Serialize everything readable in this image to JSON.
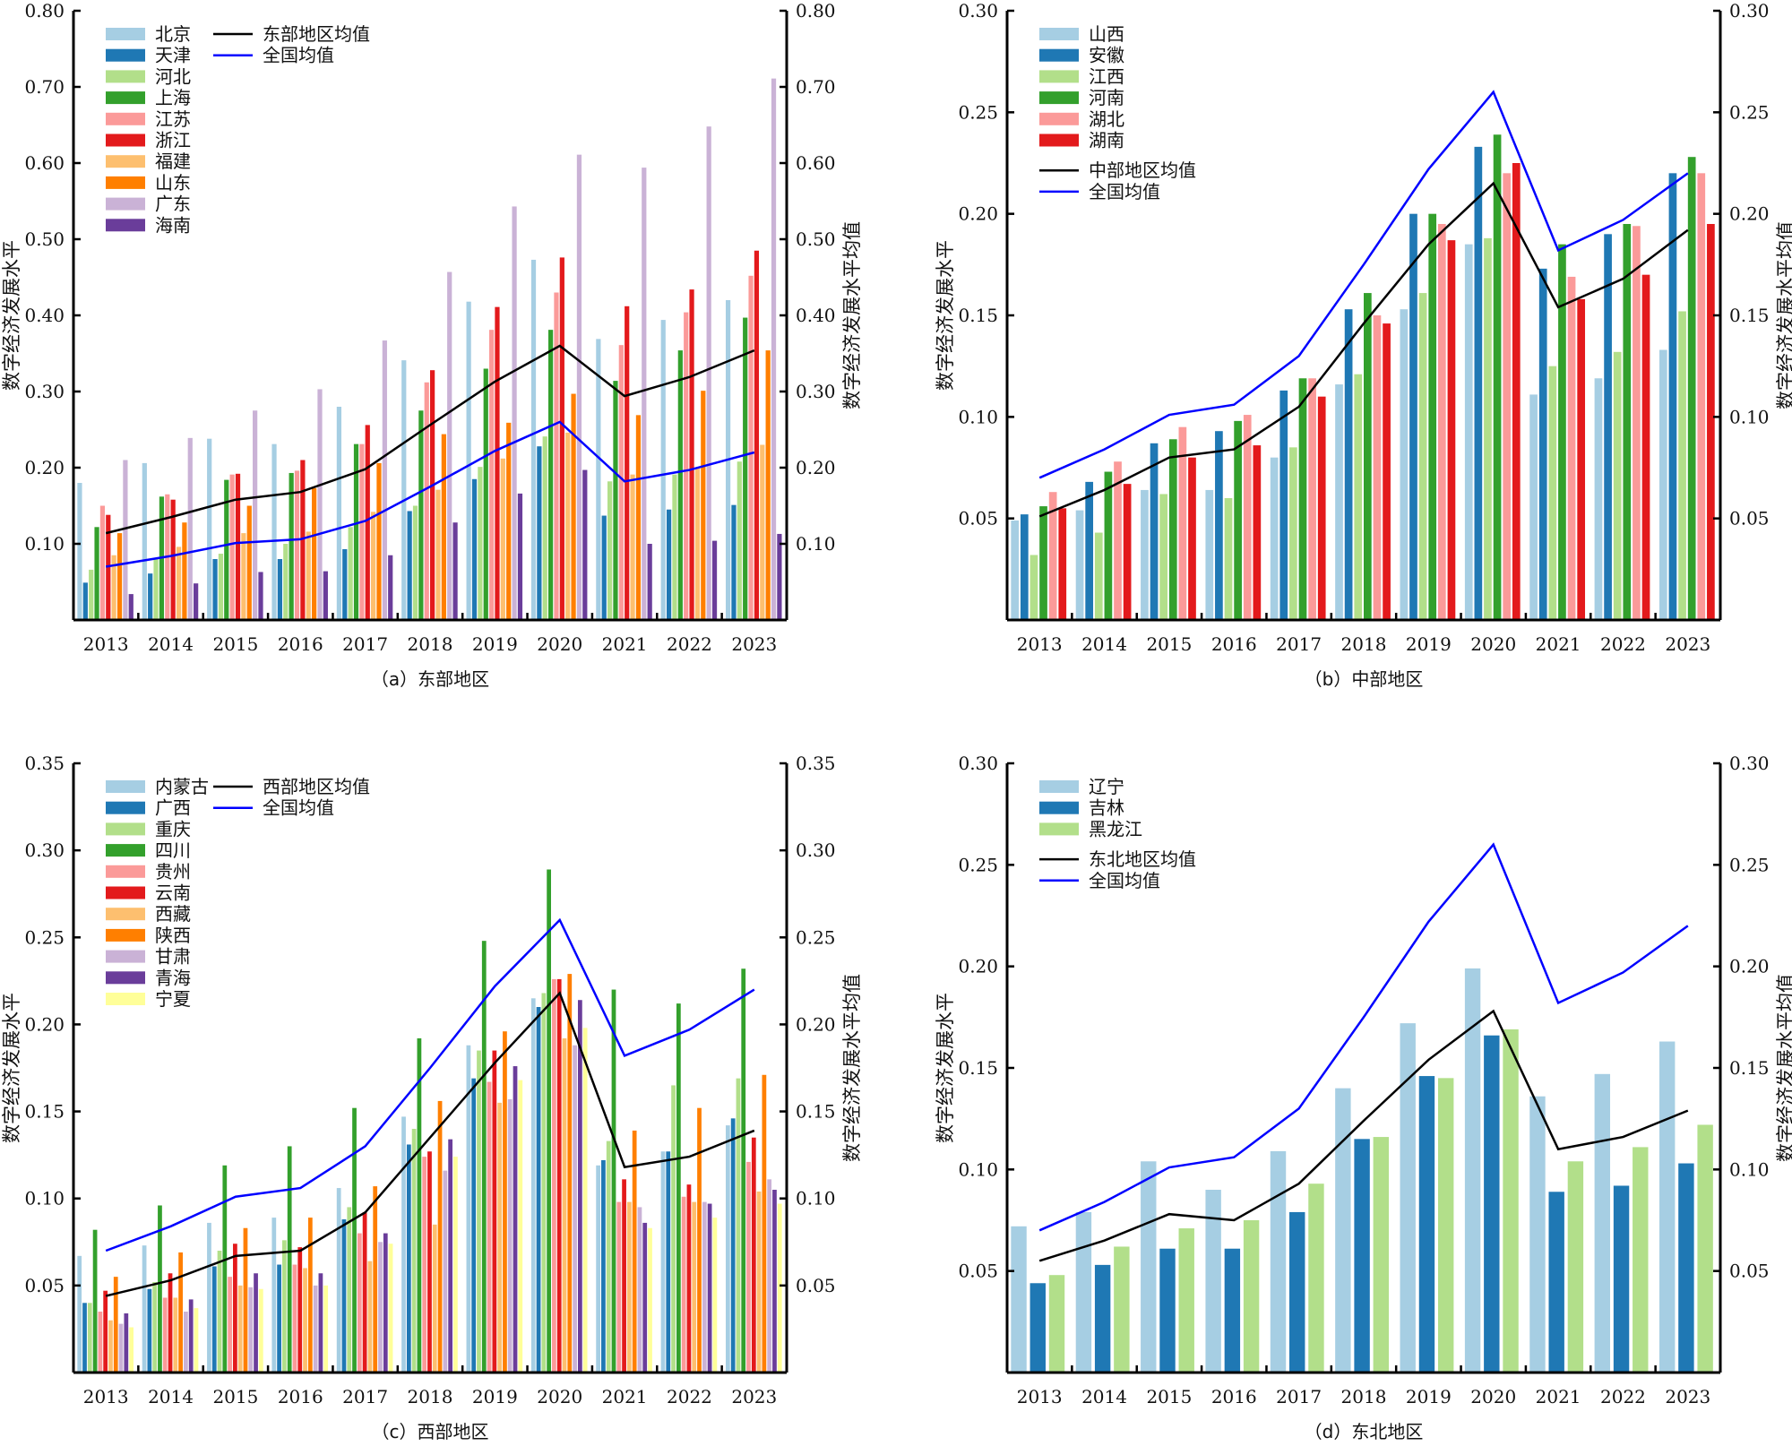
{
  "years": [
    "2013",
    "2014",
    "2015",
    "2016",
    "2017",
    "2018",
    "2019",
    "2020",
    "2021",
    "2022",
    "2023"
  ],
  "national_avg": [
    0.07,
    0.084,
    0.101,
    0.106,
    0.13,
    0.175,
    0.222,
    0.26,
    0.182,
    0.197,
    0.22
  ],
  "chart_data": [
    {
      "type": "bar",
      "id": "east",
      "caption": "（a）东部地区",
      "ylabel": "数字经济发展水平",
      "ylabel_right": "数字经济发展水平均值",
      "ylim": [
        0,
        0.8
      ],
      "yticks": [
        0.1,
        0.2,
        0.3,
        0.4,
        0.5,
        0.6,
        0.7,
        0.8
      ],
      "yticks_right": [
        0.1,
        0.2,
        0.3,
        0.4,
        0.5,
        0.6,
        0.7,
        0.8
      ],
      "tick_decimals": 2,
      "categories": [
        "2013",
        "2014",
        "2015",
        "2016",
        "2017",
        "2018",
        "2019",
        "2020",
        "2021",
        "2022",
        "2023"
      ],
      "legend_layout": "two-column",
      "series": [
        {
          "name": "北京",
          "color": "#a6cee3",
          "values": [
            0.18,
            0.206,
            0.238,
            0.231,
            0.28,
            0.341,
            0.418,
            0.473,
            0.369,
            0.394,
            0.42
          ]
        },
        {
          "name": "天津",
          "color": "#1f78b4",
          "values": [
            0.049,
            0.061,
            0.08,
            0.08,
            0.093,
            0.143,
            0.185,
            0.228,
            0.137,
            0.145,
            0.151
          ]
        },
        {
          "name": "河北",
          "color": "#b2df8a",
          "values": [
            0.066,
            0.08,
            0.087,
            0.1,
            0.122,
            0.15,
            0.201,
            0.241,
            0.182,
            0.191,
            0.208
          ]
        },
        {
          "name": "上海",
          "color": "#33a02c",
          "values": [
            0.122,
            0.162,
            0.184,
            0.193,
            0.231,
            0.275,
            0.33,
            0.381,
            0.314,
            0.354,
            0.397
          ]
        },
        {
          "name": "江苏",
          "color": "#fb9a99",
          "values": [
            0.15,
            0.165,
            0.191,
            0.196,
            0.231,
            0.312,
            0.381,
            0.43,
            0.361,
            0.404,
            0.452
          ]
        },
        {
          "name": "浙江",
          "color": "#e31a1c",
          "values": [
            0.138,
            0.158,
            0.192,
            0.21,
            0.256,
            0.328,
            0.411,
            0.476,
            0.412,
            0.434,
            0.485
          ]
        },
        {
          "name": "福建",
          "color": "#fdbf6f",
          "values": [
            0.085,
            0.096,
            0.114,
            0.116,
            0.142,
            0.171,
            0.212,
            0.246,
            0.191,
            0.2,
            0.23
          ]
        },
        {
          "name": "山东",
          "color": "#ff7f00",
          "values": [
            0.114,
            0.128,
            0.15,
            0.173,
            0.206,
            0.244,
            0.259,
            0.297,
            0.269,
            0.301,
            0.354
          ]
        },
        {
          "name": "广东",
          "color": "#cab2d6",
          "values": [
            0.21,
            0.239,
            0.275,
            0.303,
            0.367,
            0.457,
            0.543,
            0.611,
            0.594,
            0.648,
            0.711
          ]
        },
        {
          "name": "海南",
          "color": "#6a3d9a",
          "values": [
            0.034,
            0.048,
            0.063,
            0.064,
            0.085,
            0.128,
            0.166,
            0.197,
            0.1,
            0.104,
            0.113
          ]
        }
      ],
      "lines": [
        {
          "name": "东部地区均值",
          "color": "#000000",
          "values": [
            0.114,
            0.135,
            0.158,
            0.168,
            0.198,
            0.256,
            0.313,
            0.36,
            0.294,
            0.319,
            0.354
          ]
        },
        {
          "name": "全国均值",
          "color": "#0000ff",
          "values": [
            0.07,
            0.084,
            0.101,
            0.106,
            0.13,
            0.175,
            0.222,
            0.26,
            0.182,
            0.197,
            0.22
          ]
        }
      ]
    },
    {
      "type": "bar",
      "id": "central",
      "caption": "（b）中部地区",
      "ylabel": "数字经济发展水平",
      "ylabel_right": "数字经济发展水平均值",
      "ylim": [
        0,
        0.3
      ],
      "yticks": [
        0.05,
        0.1,
        0.15,
        0.2,
        0.25,
        0.3
      ],
      "yticks_right": [
        0.05,
        0.1,
        0.15,
        0.2,
        0.25,
        0.3
      ],
      "tick_decimals": 2,
      "categories": [
        "2013",
        "2014",
        "2015",
        "2016",
        "2017",
        "2018",
        "2019",
        "2020",
        "2021",
        "2022",
        "2023"
      ],
      "legend_layout": "stacked",
      "series": [
        {
          "name": "山西",
          "color": "#a6cee3",
          "values": [
            0.049,
            0.054,
            0.064,
            0.064,
            0.08,
            0.116,
            0.153,
            0.185,
            0.111,
            0.119,
            0.133
          ]
        },
        {
          "name": "安徽",
          "color": "#1f78b4",
          "values": [
            0.052,
            0.068,
            0.087,
            0.093,
            0.113,
            0.153,
            0.2,
            0.233,
            0.173,
            0.19,
            0.22
          ]
        },
        {
          "name": "江西",
          "color": "#b2df8a",
          "values": [
            0.032,
            0.043,
            0.062,
            0.06,
            0.085,
            0.121,
            0.161,
            0.188,
            0.125,
            0.132,
            0.152
          ]
        },
        {
          "name": "河南",
          "color": "#33a02c",
          "values": [
            0.056,
            0.073,
            0.089,
            0.098,
            0.119,
            0.161,
            0.2,
            0.239,
            0.185,
            0.195,
            0.228
          ]
        },
        {
          "name": "湖北",
          "color": "#fb9a99",
          "values": [
            0.063,
            0.078,
            0.095,
            0.101,
            0.119,
            0.15,
            0.195,
            0.22,
            0.169,
            0.194,
            0.22
          ]
        },
        {
          "name": "湖南",
          "color": "#e31a1c",
          "values": [
            0.055,
            0.067,
            0.08,
            0.086,
            0.11,
            0.146,
            0.187,
            0.225,
            0.158,
            0.17,
            0.195
          ]
        }
      ],
      "lines": [
        {
          "name": "中部地区均值",
          "color": "#000000",
          "values": [
            0.051,
            0.064,
            0.08,
            0.084,
            0.105,
            0.146,
            0.185,
            0.215,
            0.154,
            0.168,
            0.192
          ]
        },
        {
          "name": "全国均值",
          "color": "#0000ff",
          "values": [
            0.07,
            0.084,
            0.101,
            0.106,
            0.13,
            0.175,
            0.222,
            0.26,
            0.182,
            0.197,
            0.22
          ]
        }
      ]
    },
    {
      "type": "bar",
      "id": "west",
      "caption": "（c）西部地区",
      "ylabel": "数字经济发展水平",
      "ylabel_right": "数字经济发展水平均值",
      "ylim": [
        0,
        0.35
      ],
      "yticks": [
        0.05,
        0.1,
        0.15,
        0.2,
        0.25,
        0.3,
        0.35
      ],
      "yticks_right": [
        0.05,
        0.1,
        0.15,
        0.2,
        0.25,
        0.3,
        0.35
      ],
      "tick_decimals": 2,
      "categories": [
        "2013",
        "2014",
        "2015",
        "2016",
        "2017",
        "2018",
        "2019",
        "2020",
        "2021",
        "2022",
        "2023"
      ],
      "legend_layout": "two-column",
      "series": [
        {
          "name": "内蒙古",
          "color": "#a6cee3",
          "values": [
            0.067,
            0.073,
            0.086,
            0.089,
            0.106,
            0.147,
            0.188,
            0.215,
            0.119,
            0.127,
            0.142
          ]
        },
        {
          "name": "广西",
          "color": "#1f78b4",
          "values": [
            0.04,
            0.048,
            0.061,
            0.062,
            0.088,
            0.131,
            0.169,
            0.21,
            0.122,
            0.127,
            0.146
          ]
        },
        {
          "name": "重庆",
          "color": "#b2df8a",
          "values": [
            0.04,
            0.052,
            0.07,
            0.076,
            0.095,
            0.14,
            0.185,
            0.218,
            0.133,
            0.165,
            0.169
          ]
        },
        {
          "name": "四川",
          "color": "#33a02c",
          "values": [
            0.082,
            0.096,
            0.119,
            0.13,
            0.152,
            0.192,
            0.248,
            0.289,
            0.22,
            0.212,
            0.232
          ]
        },
        {
          "name": "贵州",
          "color": "#fb9a99",
          "values": [
            0.035,
            0.043,
            0.055,
            0.062,
            0.08,
            0.124,
            0.167,
            0.226,
            0.098,
            0.101,
            0.121
          ]
        },
        {
          "name": "云南",
          "color": "#e31a1c",
          "values": [
            0.047,
            0.057,
            0.074,
            0.072,
            0.092,
            0.127,
            0.185,
            0.226,
            0.111,
            0.108,
            0.135
          ]
        },
        {
          "name": "西藏",
          "color": "#fdbf6f",
          "values": [
            0.03,
            0.043,
            0.05,
            0.06,
            0.064,
            0.085,
            0.155,
            0.192,
            0.098,
            0.098,
            0.104
          ]
        },
        {
          "name": "陕西",
          "color": "#ff7f00",
          "values": [
            0.055,
            0.069,
            0.083,
            0.089,
            0.107,
            0.156,
            0.196,
            0.229,
            0.139,
            0.152,
            0.171
          ]
        },
        {
          "name": "甘肃",
          "color": "#cab2d6",
          "values": [
            0.028,
            0.035,
            0.049,
            0.05,
            0.075,
            0.116,
            0.157,
            0.188,
            0.095,
            0.098,
            0.111
          ]
        },
        {
          "name": "青海",
          "color": "#6a3d9a",
          "values": [
            0.034,
            0.042,
            0.057,
            0.057,
            0.08,
            0.134,
            0.176,
            0.214,
            0.086,
            0.097,
            0.105
          ]
        },
        {
          "name": "宁夏",
          "color": "#ffff99",
          "values": [
            0.026,
            0.037,
            0.048,
            0.05,
            0.074,
            0.124,
            0.168,
            0.198,
            0.083,
            0.089,
            0.097
          ]
        }
      ],
      "lines": [
        {
          "name": "西部地区均值",
          "color": "#000000",
          "values": [
            0.044,
            0.053,
            0.067,
            0.07,
            0.092,
            0.135,
            0.178,
            0.218,
            0.118,
            0.124,
            0.139
          ]
        },
        {
          "name": "全国均值",
          "color": "#0000ff",
          "values": [
            0.07,
            0.084,
            0.101,
            0.106,
            0.13,
            0.175,
            0.222,
            0.26,
            0.182,
            0.197,
            0.22
          ]
        }
      ]
    },
    {
      "type": "bar",
      "id": "northeast",
      "caption": "（d）东北地区",
      "ylabel": "数字经济发展水平",
      "ylabel_right": "数字经济发展水平均值",
      "ylim": [
        0,
        0.3
      ],
      "yticks": [
        0.05,
        0.1,
        0.15,
        0.2,
        0.25,
        0.3
      ],
      "yticks_right": [
        0.05,
        0.1,
        0.15,
        0.2,
        0.25,
        0.3
      ],
      "tick_decimals": 2,
      "categories": [
        "2013",
        "2014",
        "2015",
        "2016",
        "2017",
        "2018",
        "2019",
        "2020",
        "2021",
        "2022",
        "2023"
      ],
      "legend_layout": "stacked",
      "series": [
        {
          "name": "辽宁",
          "color": "#a6cee3",
          "values": [
            0.072,
            0.079,
            0.104,
            0.09,
            0.109,
            0.14,
            0.172,
            0.199,
            0.136,
            0.147,
            0.163
          ]
        },
        {
          "name": "吉林",
          "color": "#1f78b4",
          "values": [
            0.044,
            0.053,
            0.061,
            0.061,
            0.079,
            0.115,
            0.146,
            0.166,
            0.089,
            0.092,
            0.103
          ]
        },
        {
          "name": "黑龙江",
          "color": "#b2df8a",
          "values": [
            0.048,
            0.062,
            0.071,
            0.075,
            0.093,
            0.116,
            0.145,
            0.169,
            0.104,
            0.111,
            0.122
          ]
        }
      ],
      "lines": [
        {
          "name": "东北地区均值",
          "color": "#000000",
          "values": [
            0.055,
            0.065,
            0.078,
            0.075,
            0.093,
            0.124,
            0.154,
            0.178,
            0.11,
            0.116,
            0.129
          ]
        },
        {
          "name": "全国均值",
          "color": "#0000ff",
          "values": [
            0.07,
            0.084,
            0.101,
            0.106,
            0.13,
            0.175,
            0.222,
            0.26,
            0.182,
            0.197,
            0.22
          ]
        }
      ]
    }
  ]
}
